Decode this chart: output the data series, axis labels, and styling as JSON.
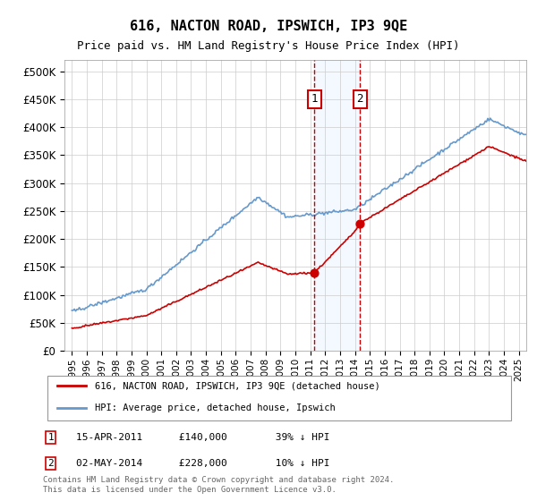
{
  "title": "616, NACTON ROAD, IPSWICH, IP3 9QE",
  "subtitle": "Price paid vs. HM Land Registry's House Price Index (HPI)",
  "sale1_date": "15-APR-2011",
  "sale1_price": 140000,
  "sale1_year": 2011.29,
  "sale2_date": "02-MAY-2014",
  "sale2_price": 228000,
  "sale2_year": 2014.34,
  "red_color": "#cc0000",
  "blue_color": "#6699cc",
  "shading_color": "#ddeeff",
  "grid_color": "#cccccc",
  "footer_text": "Contains HM Land Registry data © Crown copyright and database right 2024.\nThis data is licensed under the Open Government Licence v3.0.",
  "legend1": "616, NACTON ROAD, IPSWICH, IP3 9QE (detached house)",
  "legend2": "HPI: Average price, detached house, Ipswich",
  "note1": "1   15-APR-2011      £140,000        39% ↓ HPI",
  "note2": "2   02-MAY-2014      £228,000        10% ↓ HPI",
  "ylim": [
    0,
    520000
  ],
  "xlim_start": 1994.5,
  "xlim_end": 2025.5
}
